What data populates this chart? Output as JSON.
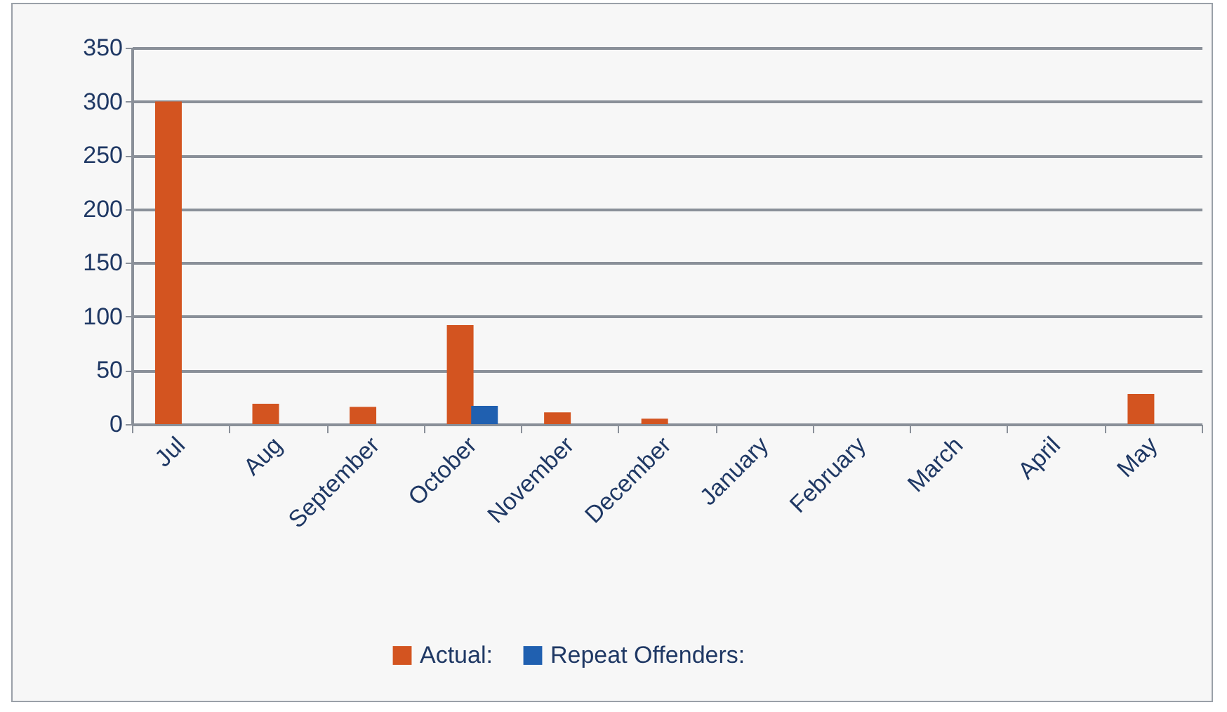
{
  "chart_data": {
    "type": "bar",
    "categories": [
      "Jul",
      "Aug",
      "September",
      "October",
      "November",
      "December",
      "January",
      "February",
      "March",
      "April",
      "May"
    ],
    "series": [
      {
        "name": "Actual:",
        "color": "#d35420",
        "values": [
          300,
          19,
          16,
          92,
          11,
          5,
          0,
          0,
          0,
          0,
          28
        ]
      },
      {
        "name": "Repeat Offenders:",
        "color": "#2060b0",
        "values": [
          0,
          0,
          0,
          17,
          0,
          0,
          0,
          0,
          0,
          0,
          0
        ]
      }
    ],
    "ylim": [
      0,
      350
    ],
    "yticks": [
      0,
      50,
      100,
      150,
      200,
      250,
      300,
      350
    ],
    "grid": "y",
    "legend": "bottom"
  }
}
